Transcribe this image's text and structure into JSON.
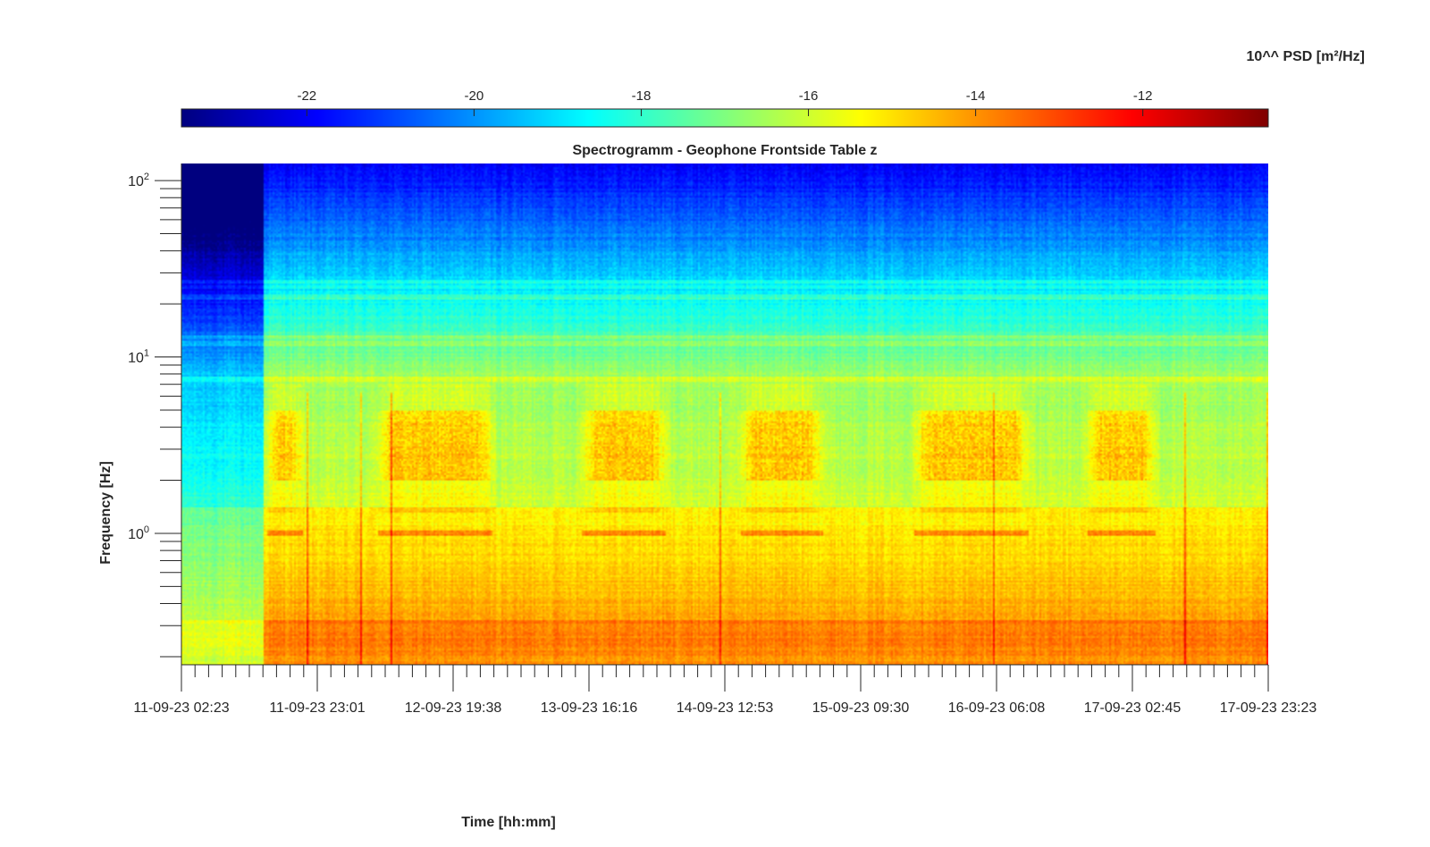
{
  "chart_data": {
    "type": "heatmap",
    "title": "Spectrogramm - Geophone Frontside Table z",
    "xlabel": "Time [hh:mm]",
    "ylabel": "Frequency [Hz]",
    "colorbar_label": "10^^ PSD [m²/Hz]",
    "colormap": "jet",
    "colorbar": {
      "ticks": [
        -22,
        -20,
        -18,
        -16,
        -14,
        -12
      ],
      "tick_labels": [
        "-22",
        "-20",
        "-18",
        "-16",
        "-14",
        "-12"
      ],
      "range": [
        -23.5,
        -10.5
      ],
      "placement": "top"
    },
    "x_tick_labels": [
      "11-09-23 02:23",
      "11-09-23 23:01",
      "12-09-23 19:38",
      "13-09-23 16:16",
      "14-09-23 12:53",
      "15-09-23 09:30",
      "16-09-23 06:08",
      "17-09-23 02:45",
      "17-09-23 23:23"
    ],
    "x_range": [
      "11-09-23 02:23",
      "17-09-23 23:23"
    ],
    "y_scale": "log",
    "y_range": [
      0.18,
      125
    ],
    "y_ticks": [
      1,
      10,
      100
    ],
    "y_tick_labels": [
      {
        "base": "10",
        "exp": "0"
      },
      {
        "base": "10",
        "exp": "1"
      },
      {
        "base": "10",
        "exp": "2"
      }
    ],
    "grid": false,
    "features": {
      "recording_start_days": 0.52,
      "active_periods_days": [
        [
          0.5,
          0.8
        ],
        [
          1.2,
          2.0
        ],
        [
          2.5,
          3.1
        ],
        [
          3.5,
          4.1
        ],
        [
          4.6,
          5.4
        ],
        [
          5.7,
          6.2
        ]
      ],
      "hot_band_hz": [
        2.0,
        5.0
      ],
      "line_at_hz": 1.0,
      "horizontal_lines_hz": [
        7.5,
        12,
        13,
        22,
        25,
        27
      ]
    }
  }
}
